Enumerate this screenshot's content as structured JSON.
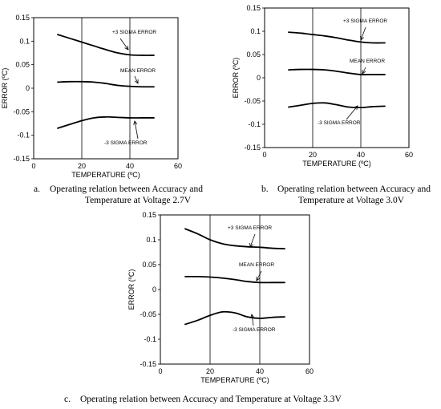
{
  "chart_data": [
    {
      "type": "line",
      "xlabel": "TEMPERATURE (ºC)",
      "ylabel": "ERROR (ºC)",
      "xlim": [
        0,
        60
      ],
      "ylim": [
        -0.15,
        0.15
      ],
      "x_ticks": [
        "0",
        "20",
        "40",
        "60"
      ],
      "y_ticks": [
        "0.15",
        "0.1",
        "0.05",
        "0",
        "-0.05",
        "-0.1",
        "-0.15"
      ],
      "grid": "vertical",
      "series": [
        {
          "name": "+3 SIGMA ERROR",
          "x": [
            10,
            15,
            20,
            25,
            30,
            35,
            40,
            45,
            50
          ],
          "y": [
            0.114,
            0.106,
            0.098,
            0.09,
            0.082,
            0.075,
            0.071,
            0.07,
            0.07
          ]
        },
        {
          "name": "MEAN ERROR",
          "x": [
            10,
            15,
            20,
            25,
            30,
            35,
            40,
            45,
            50
          ],
          "y": [
            0.013,
            0.014,
            0.014,
            0.013,
            0.01,
            0.006,
            0.004,
            0.003,
            0.003
          ]
        },
        {
          "name": "-3 SIGMA ERROR",
          "x": [
            10,
            15,
            20,
            25,
            30,
            35,
            40,
            45,
            50
          ],
          "y": [
            -0.085,
            -0.077,
            -0.069,
            -0.063,
            -0.061,
            -0.062,
            -0.063,
            -0.063,
            -0.063
          ]
        }
      ],
      "annotations": {
        "plus3": "+3 SIGMA ERROR",
        "mean": "MEAN ERROR",
        "minus3": "-3 SIGMA ERROR"
      },
      "caption": {
        "letter": "a.",
        "line1": "Operating relation between Accuracy and",
        "line2": "Temperature at Voltage 2.7V"
      }
    },
    {
      "type": "line",
      "xlabel": "TEMPERATURE (ºC)",
      "ylabel": "ERROR (ºC)",
      "xlim": [
        0,
        60
      ],
      "ylim": [
        -0.15,
        0.15
      ],
      "x_ticks": [
        "0",
        "20",
        "40",
        "60"
      ],
      "y_ticks": [
        "0.15",
        "0.1",
        "0.05",
        "0",
        "-0.05",
        "-0.1",
        "-0.15"
      ],
      "grid": "vertical",
      "series": [
        {
          "name": "+3 SIGMA ERROR",
          "x": [
            10,
            15,
            20,
            25,
            30,
            35,
            40,
            45,
            50
          ],
          "y": [
            0.098,
            0.096,
            0.093,
            0.09,
            0.086,
            0.081,
            0.077,
            0.075,
            0.075
          ]
        },
        {
          "name": "MEAN ERROR",
          "x": [
            10,
            15,
            20,
            25,
            30,
            35,
            40,
            45,
            50
          ],
          "y": [
            0.017,
            0.018,
            0.018,
            0.017,
            0.014,
            0.01,
            0.007,
            0.007,
            0.007
          ]
        },
        {
          "name": "-3 SIGMA ERROR",
          "x": [
            10,
            15,
            20,
            25,
            30,
            35,
            40,
            45,
            50
          ],
          "y": [
            -0.063,
            -0.059,
            -0.055,
            -0.054,
            -0.058,
            -0.063,
            -0.064,
            -0.062,
            -0.061
          ]
        }
      ],
      "annotations": {
        "plus3": "+3 SIGMA ERROR",
        "mean": "MEAN ERROR",
        "minus3": "-3 SIGMA ERROR"
      },
      "caption": {
        "letter": "b.",
        "line1": "Operating relation between Accuracy and",
        "line2": "Temperature at Voltage 3.0V"
      }
    },
    {
      "type": "line",
      "xlabel": "TEMPERATURE (ºC)",
      "ylabel": "ERROR (ºC)",
      "xlim": [
        0,
        60
      ],
      "ylim": [
        -0.15,
        0.15
      ],
      "x_ticks": [
        "0",
        "20",
        "40",
        "60"
      ],
      "y_ticks": [
        "0.15",
        "0.1",
        "0.05",
        "0",
        "-0.05",
        "-0.1",
        "-0.15"
      ],
      "grid": "vertical",
      "series": [
        {
          "name": "+3 SIGMA ERROR",
          "x": [
            10,
            15,
            20,
            25,
            30,
            35,
            40,
            45,
            50
          ],
          "y": [
            0.122,
            0.112,
            0.1,
            0.092,
            0.088,
            0.086,
            0.085,
            0.083,
            0.082
          ]
        },
        {
          "name": "MEAN ERROR",
          "x": [
            10,
            15,
            20,
            25,
            30,
            35,
            40,
            45,
            50
          ],
          "y": [
            0.026,
            0.026,
            0.025,
            0.023,
            0.02,
            0.016,
            0.014,
            0.014,
            0.014
          ]
        },
        {
          "name": "-3 SIGMA ERROR",
          "x": [
            10,
            15,
            20,
            25,
            30,
            35,
            40,
            45,
            50
          ],
          "y": [
            -0.07,
            -0.062,
            -0.052,
            -0.045,
            -0.047,
            -0.055,
            -0.058,
            -0.056,
            -0.055
          ]
        }
      ],
      "annotations": {
        "plus3": "+3 SIGMA ERROR",
        "mean": "MEAN ERROR",
        "minus3": "-3 SIGMA ERROR"
      },
      "caption": {
        "letter": "c.",
        "line1": "Operating relation between Accuracy and Temperature at Voltage 3.3V",
        "line2": ""
      }
    }
  ]
}
